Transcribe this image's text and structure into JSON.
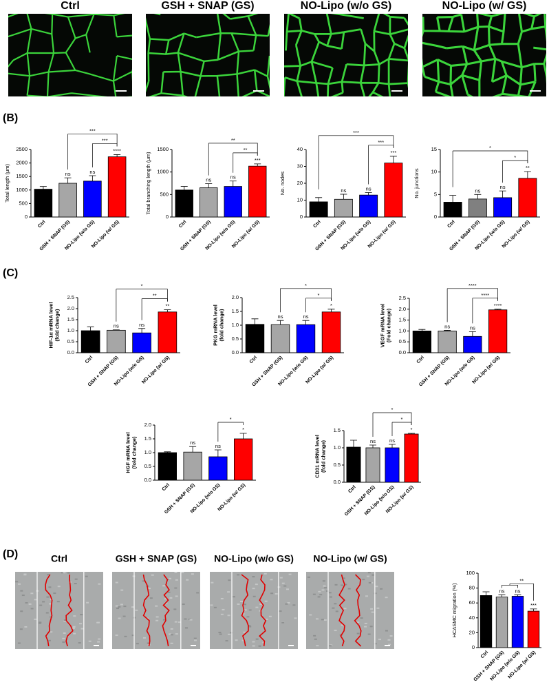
{
  "image_titles": [
    "Ctrl",
    "GSH + SNAP (GS)",
    "NO-Lipo (w/o GS)",
    "NO-Lipo (w/ GS)"
  ],
  "panel_labels": [
    "(B)",
    "(C)",
    "(D)"
  ],
  "scratch_titles": [
    "Ctrl",
    "GSH + SNAP (GS)",
    "NO-Lipo (w/o GS)",
    "NO-Lipo (w/ GS)"
  ],
  "chart_data": [
    {
      "type": "bar",
      "ylabel": [
        "Total length (μm)"
      ],
      "categories": [
        "Ctrl",
        "GSH + SNAP (GS)",
        "NO-Lipo (w/o GS)",
        "NO-Lipo (w/ GS)"
      ],
      "values": [
        1030,
        1250,
        1330,
        2230
      ],
      "errors": [
        100,
        200,
        200,
        80
      ],
      "colors": [
        "#000000",
        "#a6a6a6",
        "#0000ff",
        "#ff0000"
      ],
      "sig": [
        null,
        "ns",
        "ns",
        "****"
      ],
      "brackets": [
        {
          "label": "***",
          "from": "GSH + SNAP (GS)",
          "to": "NO-Lipo (w/ GS)"
        },
        {
          "label": "***",
          "from": "NO-Lipo (w/o GS)",
          "to": "NO-Lipo (w/ GS)"
        }
      ],
      "ylim": [
        0,
        2500
      ],
      "yticks": [
        0,
        500,
        1000,
        1500,
        2000,
        2500
      ]
    },
    {
      "type": "bar",
      "ylabel": [
        "Total branching length (μm)"
      ],
      "categories": [
        "Ctrl",
        "GSH + SNAP (GS)",
        "NO-Lipo (w/o GS)",
        "NO-Lipo (w/ GS)"
      ],
      "values": [
        600,
        650,
        680,
        1130
      ],
      "errors": [
        80,
        90,
        120,
        50
      ],
      "colors": [
        "#000000",
        "#a6a6a6",
        "#0000ff",
        "#ff0000"
      ],
      "sig": [
        null,
        "ns",
        "ns",
        "***"
      ],
      "brackets": [
        {
          "label": "**",
          "from": "GSH + SNAP (GS)",
          "to": "NO-Lipo (w/ GS)"
        },
        {
          "label": "**",
          "from": "NO-Lipo (w/o GS)",
          "to": "NO-Lipo (w/ GS)"
        }
      ],
      "ylim": [
        0,
        1500
      ],
      "yticks": [
        0,
        500,
        1000,
        1500
      ]
    },
    {
      "type": "bar",
      "ylabel": [
        "No. nodes"
      ],
      "categories": [
        "Ctrl",
        "GSH + SNAP (GS)",
        "NO-Lipo (w/o GS)",
        "NO-Lipo (w/ GS)"
      ],
      "values": [
        9,
        10.5,
        13,
        32
      ],
      "errors": [
        2.5,
        3,
        1.5,
        4
      ],
      "colors": [
        "#000000",
        "#a6a6a6",
        "#0000ff",
        "#ff0000"
      ],
      "sig": [
        null,
        "ns",
        "ns",
        "***"
      ],
      "brackets": [
        {
          "label": "***",
          "from": "Ctrl",
          "to": "NO-Lipo (w/ GS)"
        },
        {
          "label": "***",
          "from": "NO-Lipo (w/o GS)",
          "to": "NO-Lipo (w/ GS)"
        }
      ],
      "ylim": [
        0,
        40
      ],
      "yticks": [
        0,
        10,
        20,
        30,
        40
      ]
    },
    {
      "type": "bar",
      "ylabel": [
        "No. junctions"
      ],
      "categories": [
        "Ctrl",
        "GSH + SNAP (GS)",
        "NO-Lipo (w/o GS)",
        "NO-Lipo (w/ GS)"
      ],
      "values": [
        3.3,
        4,
        4.3,
        8.6
      ],
      "errors": [
        1.5,
        1,
        1.5,
        1.5
      ],
      "colors": [
        "#000000",
        "#808080",
        "#0000ff",
        "#ff0000"
      ],
      "sig": [
        null,
        "ns",
        "ns",
        "**"
      ],
      "brackets": [
        {
          "label": "*",
          "from": "Ctrl",
          "to": "NO-Lipo (w/ GS)"
        },
        {
          "label": "*",
          "from": "NO-Lipo (w/o GS)",
          "to": "NO-Lipo (w/ GS)"
        }
      ],
      "ylim": [
        0,
        15
      ],
      "yticks": [
        0,
        5,
        10,
        15
      ]
    },
    {
      "type": "bar",
      "ylabel": [
        "HIF-1α mRNA level",
        "(fold change)"
      ],
      "categories": [
        "Ctrl",
        "GSH + SNAP (GS)",
        "NO-Lipo (w/o GS)",
        "NO-Lipo (w/ GS)"
      ],
      "values": [
        1.0,
        1.02,
        0.9,
        1.85
      ],
      "errors": [
        0.17,
        0.02,
        0.2,
        0.1
      ],
      "colors": [
        "#000000",
        "#a6a6a6",
        "#0000ff",
        "#ff0000"
      ],
      "sig": [
        null,
        "ns",
        "ns",
        "**"
      ],
      "brackets": [
        {
          "label": "*",
          "from": "GSH + SNAP (GS)",
          "to": "NO-Lipo (w/ GS)"
        },
        {
          "label": "**",
          "from": "NO-Lipo (w/o GS)",
          "to": "NO-Lipo (w/ GS)"
        }
      ],
      "ylim": [
        0,
        2.5
      ],
      "yticks": [
        {
          "value": 0,
          "label": "0.0"
        },
        0.5,
        {
          "value": 1,
          "label": "1.0"
        },
        1.5,
        {
          "value": 2,
          "label": "2.0"
        },
        2.5
      ]
    },
    {
      "type": "bar",
      "ylabel": [
        "PKG mRNA level",
        "(fold change)"
      ],
      "categories": [
        "Ctrl",
        "GSH + SNAP (GS)",
        "NO-Lipo (w/o GS)",
        "NO-Lipo (w/ GS)"
      ],
      "values": [
        1.03,
        1.02,
        1.02,
        1.48
      ],
      "errors": [
        0.2,
        0.15,
        0.15,
        0.1
      ],
      "colors": [
        "#000000",
        "#a6a6a6",
        "#0000ff",
        "#ff0000"
      ],
      "sig": [
        null,
        "ns",
        "ns",
        "*"
      ],
      "brackets": [
        {
          "label": "*",
          "from": "GSH + SNAP (GS)",
          "to": "NO-Lipo (w/ GS)"
        },
        {
          "label": "*",
          "from": "NO-Lipo (w/o GS)",
          "to": "NO-Lipo (w/ GS)"
        }
      ],
      "ylim": [
        0,
        2
      ],
      "yticks": [
        {
          "value": 0,
          "label": "0.0"
        },
        0.5,
        {
          "value": 1,
          "label": "1.0"
        },
        1.5,
        {
          "value": 2,
          "label": "2.0"
        }
      ]
    },
    {
      "type": "bar",
      "ylabel": [
        "VEGF mRNA level",
        "(Fold change)"
      ],
      "categories": [
        "Ctrl",
        "GSH + SNAP (GS)",
        "NO-Lipo (w/o GS)",
        "NO-Lipo (w/ GS)"
      ],
      "values": [
        1.0,
        1.0,
        0.75,
        1.97
      ],
      "errors": [
        0.07,
        0.03,
        0.22,
        0.03
      ],
      "colors": [
        "#000000",
        "#a6a6a6",
        "#0000ff",
        "#ff0000"
      ],
      "sig": [
        null,
        "ns",
        "ns",
        "****"
      ],
      "brackets": [
        {
          "label": "****",
          "from": "GSH + SNAP (GS)",
          "to": "NO-Lipo (w/ GS)"
        },
        {
          "label": "****",
          "from": "NO-Lipo (w/o GS)",
          "to": "NO-Lipo (w/ GS)"
        }
      ],
      "ylim": [
        0,
        2.5
      ],
      "yticks": [
        {
          "value": 0,
          "label": "0.0"
        },
        0.5,
        {
          "value": 1,
          "label": "1.0"
        },
        1.5,
        {
          "value": 2,
          "label": "2.0"
        },
        2.5
      ]
    },
    {
      "type": "bar",
      "ylabel": [
        "HGF mRNA level",
        "(fold change)"
      ],
      "categories": [
        "Ctrl",
        "GSH + SNAP (GS)",
        "NO-Lipo (w/o GS)",
        "NO-Lipo (w/ GS)"
      ],
      "values": [
        1.0,
        1.02,
        0.85,
        1.5
      ],
      "errors": [
        0.03,
        0.2,
        0.25,
        0.2
      ],
      "colors": [
        "#000000",
        "#a6a6a6",
        "#0000ff",
        "#ff0000"
      ],
      "sig": [
        null,
        "ns",
        "ns",
        "*"
      ],
      "brackets": [
        {
          "label": "*",
          "from": "NO-Lipo (w/o GS)",
          "to": "NO-Lipo (w/ GS)"
        }
      ],
      "ylim": [
        0,
        2
      ],
      "yticks": [
        {
          "value": 0,
          "label": "0.0"
        },
        0.5,
        {
          "value": 1,
          "label": "1.0"
        },
        1.5,
        {
          "value": 2,
          "label": "2.0"
        }
      ]
    },
    {
      "type": "bar",
      "ylabel": [
        "CD31 mRNA level",
        "(fold change)"
      ],
      "categories": [
        "Ctrl",
        "GSH + SNAP (GS)",
        "NO-Lipo (w/o GS)",
        "NO-Lipo (w/ GS)"
      ],
      "values": [
        1.02,
        1.0,
        1.0,
        1.4
      ],
      "errors": [
        0.2,
        0.08,
        0.1,
        0.02
      ],
      "colors": [
        "#000000",
        "#a6a6a6",
        "#0000ff",
        "#ff0000"
      ],
      "sig": [
        null,
        "ns",
        "ns",
        "*"
      ],
      "brackets": [
        {
          "label": "*",
          "from": "GSH + SNAP (GS)",
          "to": "NO-Lipo (w/ GS)"
        },
        {
          "label": "*",
          "from": "NO-Lipo (w/o GS)",
          "to": "NO-Lipo (w/ GS)"
        }
      ],
      "ylim": [
        0,
        1.5
      ],
      "yticks": [
        {
          "value": 0,
          "label": "0.0"
        },
        0.5,
        {
          "value": 1,
          "label": "1.0"
        },
        1.5
      ]
    },
    {
      "type": "bar",
      "ylabel": [
        "HCASMC migration (%)"
      ],
      "categories": [
        "Ctrl",
        "GSH + SNAP (GS)",
        "NO-Lipo (w/o GS)",
        "NO-Lipo (w/ GS)"
      ],
      "values": [
        70,
        68,
        69,
        49
      ],
      "errors": [
        5,
        3,
        2,
        3
      ],
      "colors": [
        "#000000",
        "#a6a6a6",
        "#0000ff",
        "#ff0000"
      ],
      "sig": [
        null,
        "ns",
        "ns",
        "***"
      ],
      "brackets": [
        {
          "label": "**",
          "from": [
            "GSH + SNAP (GS)",
            "NO-Lipo (w/o GS)"
          ],
          "to": "NO-Lipo (w/ GS)"
        }
      ],
      "ylim": [
        0,
        100
      ],
      "yticks": [
        0,
        20,
        40,
        60,
        80,
        100
      ]
    }
  ]
}
